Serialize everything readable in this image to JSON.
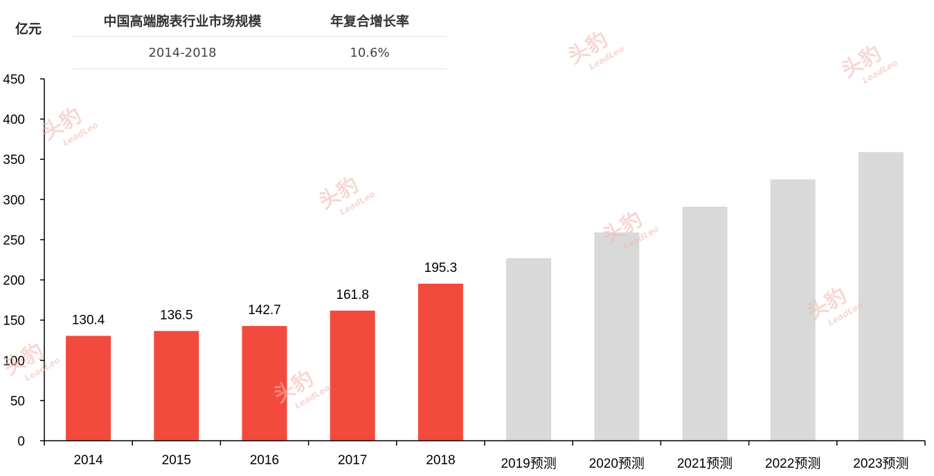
{
  "unit_label": "亿元",
  "cagr_table": {
    "headers": [
      "中国高端腕表行业市场规模",
      "年复合增长率"
    ],
    "rows": [
      [
        "2014-2018",
        "10.6%"
      ]
    ]
  },
  "watermark": {
    "cn": "头豹",
    "en": "LeadLeo"
  },
  "colors": {
    "actual": "#f24a3d",
    "forecast": "#d9d9d9",
    "axis": "#000000"
  },
  "chart_data": {
    "type": "bar",
    "categories": [
      "2014",
      "2015",
      "2016",
      "2017",
      "2018",
      "2019预测",
      "2020预测",
      "2021预测",
      "2022预测",
      "2023预测"
    ],
    "values": [
      130.4,
      136.5,
      142.7,
      161.8,
      195.3,
      227,
      259,
      291,
      325,
      359
    ],
    "value_labels": [
      "130.4",
      "136.5",
      "142.7",
      "161.8",
      "195.3",
      "",
      "",
      "",
      "",
      ""
    ],
    "forecast": [
      false,
      false,
      false,
      false,
      false,
      true,
      true,
      true,
      true,
      true
    ],
    "ylim": [
      0,
      450
    ],
    "yticks": [
      0,
      50,
      100,
      150,
      200,
      250,
      300,
      350,
      400,
      450
    ],
    "ylabel": "亿元",
    "xlabel": "",
    "title": "",
    "grid": false,
    "legend": "none"
  }
}
